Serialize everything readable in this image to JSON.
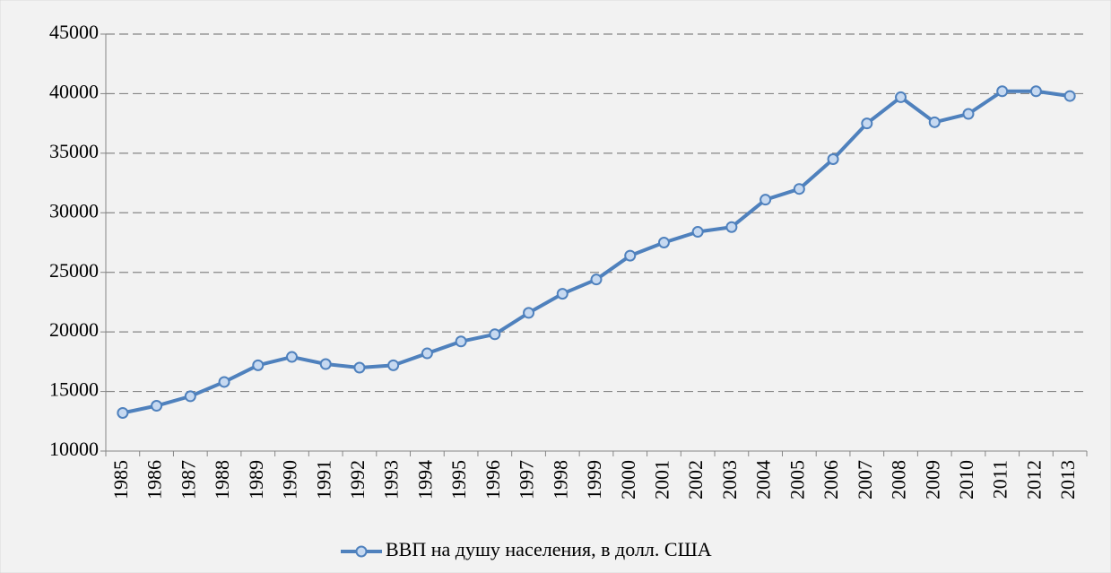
{
  "chart_data": {
    "type": "line",
    "categories": [
      "1985",
      "1986",
      "1987",
      "1988",
      "1989",
      "1990",
      "1991",
      "1992",
      "1993",
      "1994",
      "1995",
      "1996",
      "1997",
      "1998",
      "1999",
      "2000",
      "2001",
      "2002",
      "2003",
      "2004",
      "2005",
      "2006",
      "2007",
      "2008",
      "2009",
      "2010",
      "2011",
      "2012",
      "2013"
    ],
    "series": [
      {
        "name": "ВВП на душу населения, в долл. США",
        "color": "#4f81bd",
        "values": [
          13200,
          13800,
          14600,
          15800,
          17200,
          17900,
          17300,
          17000,
          17200,
          18200,
          19200,
          19800,
          21600,
          23200,
          24400,
          26400,
          27500,
          28400,
          28800,
          31100,
          32000,
          34500,
          37500,
          39700,
          37600,
          38300,
          40200,
          40200,
          39800
        ]
      }
    ],
    "ylim": [
      10000,
      45000
    ],
    "yticks": [
      10000,
      15000,
      20000,
      25000,
      30000,
      35000,
      40000,
      45000
    ],
    "grid": true,
    "legend": "bottom"
  }
}
